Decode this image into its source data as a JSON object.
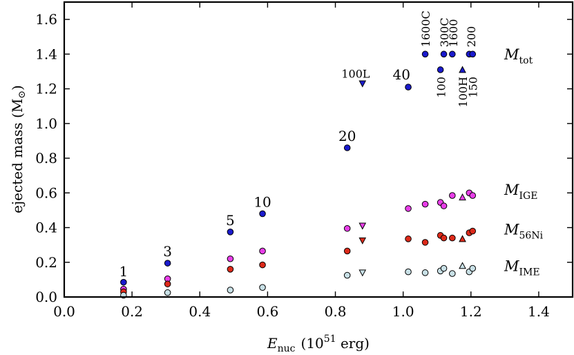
{
  "chart_data": {
    "type": "scatter",
    "xlabel": {
      "main": "E",
      "sub": "nuc",
      "unit_pre": "(10",
      "unit_sup": "51",
      "unit_post": " erg)"
    },
    "ylabel": {
      "main": "ejected mass (M",
      "sun": "⊙",
      "close": ")"
    },
    "xlim": [
      0.0,
      1.5
    ],
    "ylim": [
      0.0,
      1.7
    ],
    "xticks": [
      "0.0",
      "0.2",
      "0.4",
      "0.6",
      "0.8",
      "1.0",
      "1.2",
      "1.4"
    ],
    "yticks": [
      "0.0",
      "0.2",
      "0.4",
      "0.6",
      "0.8",
      "1.0",
      "1.2",
      "1.4",
      "1.6"
    ],
    "colors": {
      "tot": "#1a1acc",
      "ige": "#e83ee8",
      "ni": "#dd2a1a",
      "ime": "#c8e0e6"
    },
    "series": [
      {
        "name": "tot",
        "label": "M",
        "label_sub": "tot",
        "label_y": 1.37,
        "points": [
          {
            "x": 0.175,
            "y": 0.085,
            "m": "o"
          },
          {
            "x": 0.305,
            "y": 0.195,
            "m": "o"
          },
          {
            "x": 0.49,
            "y": 0.375,
            "m": "o"
          },
          {
            "x": 0.585,
            "y": 0.48,
            "m": "o"
          },
          {
            "x": 0.835,
            "y": 0.86,
            "m": "o"
          },
          {
            "x": 0.88,
            "y": 1.23,
            "m": "v"
          },
          {
            "x": 1.015,
            "y": 1.21,
            "m": "o"
          },
          {
            "x": 1.065,
            "y": 1.4,
            "m": "o"
          },
          {
            "x": 1.11,
            "y": 1.31,
            "m": "o"
          },
          {
            "x": 1.12,
            "y": 1.4,
            "m": "o"
          },
          {
            "x": 1.145,
            "y": 1.4,
            "m": "o"
          },
          {
            "x": 1.175,
            "y": 1.31,
            "m": "^"
          },
          {
            "x": 1.195,
            "y": 1.4,
            "m": "o"
          },
          {
            "x": 1.205,
            "y": 1.4,
            "m": "o"
          }
        ]
      },
      {
        "name": "ige",
        "label": "M",
        "label_sub": "IGE",
        "label_y": 0.59,
        "points": [
          {
            "x": 0.175,
            "y": 0.045,
            "m": "o"
          },
          {
            "x": 0.305,
            "y": 0.105,
            "m": "o"
          },
          {
            "x": 0.49,
            "y": 0.22,
            "m": "o"
          },
          {
            "x": 0.585,
            "y": 0.265,
            "m": "o"
          },
          {
            "x": 0.835,
            "y": 0.395,
            "m": "o"
          },
          {
            "x": 0.88,
            "y": 0.41,
            "m": "v"
          },
          {
            "x": 1.015,
            "y": 0.51,
            "m": "o"
          },
          {
            "x": 1.065,
            "y": 0.535,
            "m": "o"
          },
          {
            "x": 1.11,
            "y": 0.545,
            "m": "o"
          },
          {
            "x": 1.12,
            "y": 0.525,
            "m": "o"
          },
          {
            "x": 1.145,
            "y": 0.585,
            "m": "o"
          },
          {
            "x": 1.175,
            "y": 0.575,
            "m": "^"
          },
          {
            "x": 1.195,
            "y": 0.6,
            "m": "o"
          },
          {
            "x": 1.205,
            "y": 0.585,
            "m": "o"
          }
        ]
      },
      {
        "name": "ni",
        "label": "M",
        "label_sub": "56Ni",
        "label_y": 0.36,
        "points": [
          {
            "x": 0.175,
            "y": 0.03,
            "m": "o"
          },
          {
            "x": 0.305,
            "y": 0.075,
            "m": "o"
          },
          {
            "x": 0.49,
            "y": 0.16,
            "m": "o"
          },
          {
            "x": 0.585,
            "y": 0.185,
            "m": "o"
          },
          {
            "x": 0.835,
            "y": 0.265,
            "m": "o"
          },
          {
            "x": 0.88,
            "y": 0.325,
            "m": "v"
          },
          {
            "x": 1.015,
            "y": 0.335,
            "m": "o"
          },
          {
            "x": 1.065,
            "y": 0.315,
            "m": "o"
          },
          {
            "x": 1.11,
            "y": 0.355,
            "m": "o"
          },
          {
            "x": 1.12,
            "y": 0.34,
            "m": "o"
          },
          {
            "x": 1.145,
            "y": 0.34,
            "m": "o"
          },
          {
            "x": 1.175,
            "y": 0.335,
            "m": "^"
          },
          {
            "x": 1.195,
            "y": 0.37,
            "m": "o"
          },
          {
            "x": 1.205,
            "y": 0.38,
            "m": "o"
          }
        ]
      },
      {
        "name": "ime",
        "label": "M",
        "label_sub": "IME",
        "label_y": 0.15,
        "points": [
          {
            "x": 0.175,
            "y": 0.01,
            "m": "o"
          },
          {
            "x": 0.305,
            "y": 0.025,
            "m": "o"
          },
          {
            "x": 0.49,
            "y": 0.04,
            "m": "o"
          },
          {
            "x": 0.585,
            "y": 0.055,
            "m": "o"
          },
          {
            "x": 0.835,
            "y": 0.125,
            "m": "o"
          },
          {
            "x": 0.88,
            "y": 0.14,
            "m": "v"
          },
          {
            "x": 1.015,
            "y": 0.145,
            "m": "o"
          },
          {
            "x": 1.065,
            "y": 0.14,
            "m": "o"
          },
          {
            "x": 1.11,
            "y": 0.15,
            "m": "o"
          },
          {
            "x": 1.12,
            "y": 0.165,
            "m": "o"
          },
          {
            "x": 1.145,
            "y": 0.135,
            "m": "o"
          },
          {
            "x": 1.175,
            "y": 0.18,
            "m": "^"
          },
          {
            "x": 1.195,
            "y": 0.145,
            "m": "o"
          },
          {
            "x": 1.205,
            "y": 0.165,
            "m": "o"
          }
        ]
      }
    ],
    "annotations": [
      {
        "text": "1",
        "x": 0.175,
        "y": 0.12,
        "rot": 0,
        "size": "ann",
        "anchor": "middle"
      },
      {
        "text": "3",
        "x": 0.305,
        "y": 0.235,
        "rot": 0,
        "size": "ann",
        "anchor": "middle"
      },
      {
        "text": "5",
        "x": 0.49,
        "y": 0.415,
        "rot": 0,
        "size": "ann",
        "anchor": "middle"
      },
      {
        "text": "10",
        "x": 0.585,
        "y": 0.52,
        "rot": 0,
        "size": "ann",
        "anchor": "middle"
      },
      {
        "text": "20",
        "x": 0.835,
        "y": 0.9,
        "rot": 0,
        "size": "ann",
        "anchor": "middle"
      },
      {
        "text": "100L",
        "x": 0.86,
        "y": 1.265,
        "rot": 0,
        "size": "ann-sm",
        "anchor": "middle"
      },
      {
        "text": "40",
        "x": 0.995,
        "y": 1.255,
        "rot": 0,
        "size": "ann",
        "anchor": "middle"
      },
      {
        "text": "1600C",
        "x": 1.066,
        "y": 1.44,
        "rot": -90,
        "size": "ann-sm",
        "anchor": "start"
      },
      {
        "text": "300C",
        "x": 1.121,
        "y": 1.44,
        "rot": -90,
        "size": "ann-sm",
        "anchor": "start"
      },
      {
        "text": "1600",
        "x": 1.147,
        "y": 1.44,
        "rot": -90,
        "size": "ann-sm",
        "anchor": "start"
      },
      {
        "text": "200",
        "x": 1.2,
        "y": 1.44,
        "rot": -90,
        "size": "ann-sm",
        "anchor": "start"
      },
      {
        "text": "100",
        "x": 1.112,
        "y": 1.27,
        "rot": -90,
        "size": "ann-sm",
        "anchor": "end"
      },
      {
        "text": "100H",
        "x": 1.176,
        "y": 1.27,
        "rot": -90,
        "size": "ann-sm",
        "anchor": "end"
      },
      {
        "text": "150",
        "x": 1.206,
        "y": 1.27,
        "rot": -90,
        "size": "ann-sm",
        "anchor": "end"
      }
    ]
  }
}
